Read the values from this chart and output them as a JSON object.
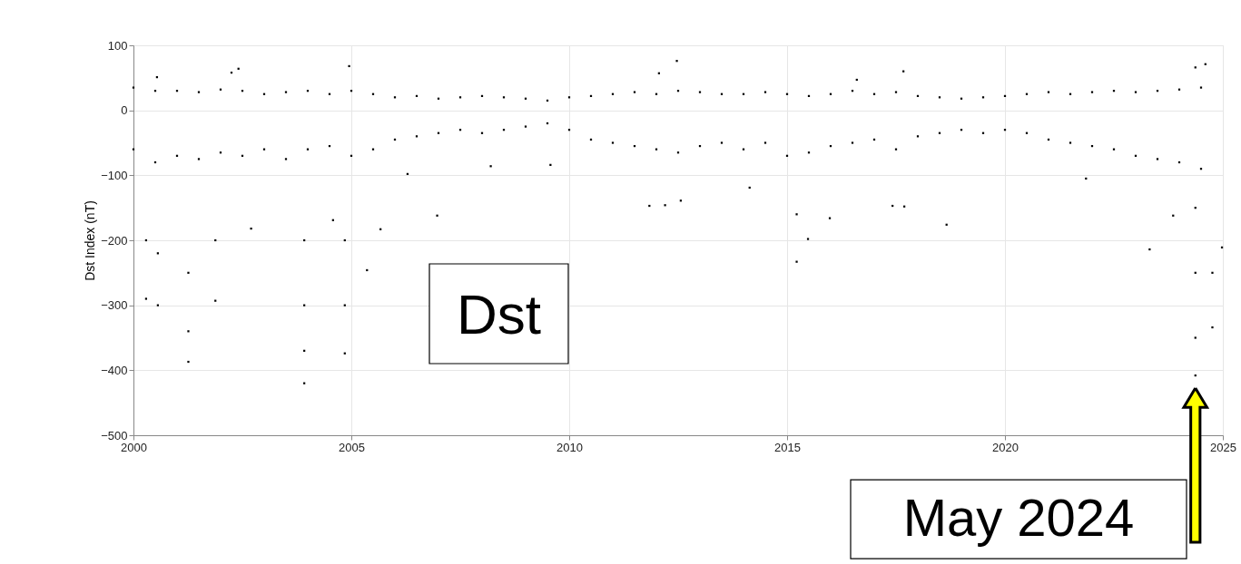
{
  "chart_data": {
    "type": "scatter",
    "ylabel": "Dst Index (nT)",
    "xlim": [
      2000,
      2025
    ],
    "xticks": [
      2000,
      2005,
      2010,
      2015,
      2020,
      2025
    ],
    "ylim": [
      -500,
      100
    ],
    "yticks": [
      -500,
      -400,
      -300,
      -200,
      -100,
      0,
      100
    ],
    "grid": true,
    "marker": "square",
    "annotations": [
      "Dst",
      {
        "text": "May 2024",
        "x": 2024.37,
        "y": -408
      }
    ],
    "series": [
      {
        "color": "#000000",
        "x": [
          2000.0,
          2000.0,
          2000.5,
          2000.5,
          2001.0,
          2001.0,
          2001.5,
          2001.5,
          2002.0,
          2002.0,
          2002.5,
          2002.5,
          2003.0,
          2003.0,
          2003.5,
          2003.5,
          2004.0,
          2004.0,
          2004.5,
          2004.5,
          2005.0,
          2005.0,
          2005.5,
          2005.5,
          2006.0,
          2006.0,
          2006.5,
          2006.5,
          2007.0,
          2007.0,
          2007.5,
          2007.5,
          2008.0,
          2008.0,
          2008.5,
          2008.5,
          2009.0,
          2009.0,
          2009.5,
          2009.5,
          2010.0,
          2010.0,
          2010.5,
          2010.5,
          2011.0,
          2011.0,
          2011.5,
          2011.5,
          2012.0,
          2012.0,
          2012.5,
          2012.5,
          2013.0,
          2013.0,
          2013.5,
          2013.5,
          2014.0,
          2014.0,
          2014.5,
          2014.5,
          2015.0,
          2015.0,
          2015.5,
          2015.5,
          2016.0,
          2016.0,
          2016.5,
          2016.5,
          2017.0,
          2017.0,
          2017.5,
          2017.5,
          2018.0,
          2018.0,
          2018.5,
          2018.5,
          2019.0,
          2019.0,
          2019.5,
          2019.5,
          2020.0,
          2020.0,
          2020.5,
          2020.5,
          2021.0,
          2021.0,
          2021.5,
          2021.5,
          2022.0,
          2022.0,
          2022.5,
          2022.5,
          2023.0,
          2023.0,
          2023.5,
          2023.5,
          2024.0,
          2024.0,
          2024.5,
          2024.5,
          2000.29,
          2000.29,
          2000.56,
          2000.56,
          2001.26,
          2001.26,
          2001.26,
          2001.88,
          2001.88,
          2002.7,
          2003.92,
          2003.92,
          2003.92,
          2003.92,
          2004.58,
          2004.85,
          2004.85,
          2004.85,
          2005.36,
          2005.67,
          2006.29,
          2006.97,
          2008.2,
          2009.57,
          2011.84,
          2012.2,
          2012.56,
          2014.14,
          2015.22,
          2015.22,
          2015.48,
          2015.98,
          2017.42,
          2017.69,
          2018.66,
          2021.86,
          2023.32,
          2023.86,
          2024.37,
          2024.37,
          2024.37,
          2024.37,
          2024.76,
          2024.76,
          2024.98,
          2000.54,
          2002.25,
          2002.41,
          2004.95,
          2012.06,
          2012.47,
          2016.6,
          2017.67,
          2024.37,
          2024.6
        ],
        "values": [
          35,
          -60,
          30,
          -80,
          30,
          -70,
          28,
          -75,
          32,
          -65,
          30,
          -70,
          25,
          -60,
          28,
          -75,
          30,
          -60,
          25,
          -55,
          30,
          -70,
          25,
          -60,
          20,
          -45,
          22,
          -40,
          18,
          -35,
          20,
          -30,
          22,
          -35,
          20,
          -30,
          18,
          -25,
          15,
          -20,
          20,
          -30,
          22,
          -45,
          25,
          -50,
          28,
          -55,
          25,
          -60,
          30,
          -65,
          28,
          -55,
          25,
          -50,
          25,
          -60,
          28,
          -50,
          25,
          -70,
          22,
          -65,
          25,
          -55,
          30,
          -50,
          25,
          -45,
          28,
          -60,
          22,
          -40,
          20,
          -35,
          18,
          -30,
          20,
          -35,
          22,
          -30,
          25,
          -35,
          28,
          -45,
          25,
          -50,
          28,
          -55,
          30,
          -60,
          28,
          -70,
          30,
          -75,
          32,
          -80,
          35,
          -90,
          -290,
          -200,
          -300,
          -220,
          -387,
          -340,
          -250,
          -293,
          -200,
          -182,
          -420,
          -370,
          -300,
          -200,
          -169,
          -374,
          -300,
          -200,
          -246,
          -183,
          -98,
          -162,
          -86,
          -84,
          -147,
          -146,
          -139,
          -119,
          -233,
          -160,
          -198,
          -166,
          -147,
          -148,
          -176,
          -105,
          -214,
          -162,
          -408,
          -350,
          -250,
          -150,
          -334,
          -250,
          -211,
          51,
          58,
          64,
          68,
          57,
          76,
          47,
          60,
          66,
          71
        ]
      }
    ]
  }
}
